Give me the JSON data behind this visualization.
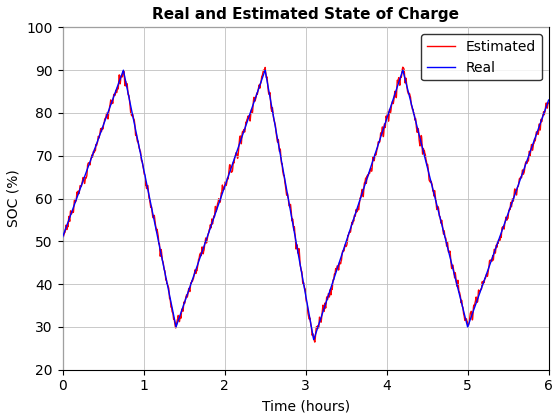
{
  "title": "Real and Estimated State of Charge",
  "xlabel": "Time (hours)",
  "ylabel": "SOC (%)",
  "xlim": [
    0,
    6
  ],
  "ylim": [
    20,
    100
  ],
  "xticks": [
    0,
    1,
    2,
    3,
    4,
    5,
    6
  ],
  "yticks": [
    20,
    30,
    40,
    50,
    60,
    70,
    80,
    90,
    100
  ],
  "real_color": "#0000FF",
  "estimated_color": "#FF0000",
  "real_linewidth": 1.0,
  "estimated_linewidth": 1.0,
  "legend_labels": [
    "Real",
    "Estimated"
  ],
  "legend_loc": "upper right",
  "grid": true,
  "background_color": "#FFFFFF",
  "title_fontsize": 11,
  "label_fontsize": 10,
  "tick_fontsize": 10,
  "t_max": 6,
  "n_points": 3000,
  "noise_seed": 7,
  "noise_scale": 1.8,
  "real_keypoints": [
    [
      0.0,
      51
    ],
    [
      0.75,
      90
    ],
    [
      1.4,
      30
    ],
    [
      2.5,
      90
    ],
    [
      3.1,
      27
    ],
    [
      4.2,
      90
    ],
    [
      5.0,
      30
    ],
    [
      6.0,
      83
    ]
  ]
}
